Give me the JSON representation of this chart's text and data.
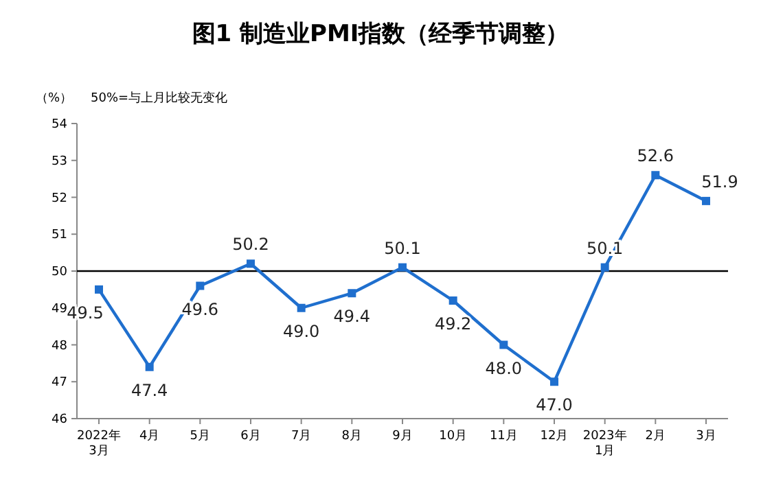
{
  "chart_data": {
    "type": "line",
    "title": "图1 制造业PMI指数（经季节调整）",
    "ylabel": "（%）",
    "annotations": [
      "50%=与上月比较无变化"
    ],
    "categories": [
      "2022年\n3月",
      "4月",
      "5月",
      "6月",
      "7月",
      "8月",
      "9月",
      "10月",
      "11月",
      "12月",
      "2023年\n1月",
      "2月",
      "3月"
    ],
    "series": [
      {
        "color": "#1f6fce",
        "values": [
          49.5,
          47.4,
          49.6,
          50.2,
          49.0,
          49.4,
          50.1,
          49.2,
          48.0,
          47.0,
          50.1,
          52.6,
          51.9
        ],
        "value_labels": [
          "49.5",
          "47.4",
          "49.6",
          "50.2",
          "49.0",
          "49.4",
          "50.1",
          "49.2",
          "48.0",
          "47.0",
          "50.1",
          "52.6",
          "51.9"
        ]
      }
    ],
    "ylim": [
      46,
      54
    ],
    "yticks": [
      46,
      47,
      48,
      49,
      50,
      51,
      52,
      53,
      54
    ],
    "ref_lines": [
      {
        "axis": "y",
        "value": 50,
        "color": "#000000"
      }
    ],
    "marker": "square",
    "line_style": "solid"
  }
}
